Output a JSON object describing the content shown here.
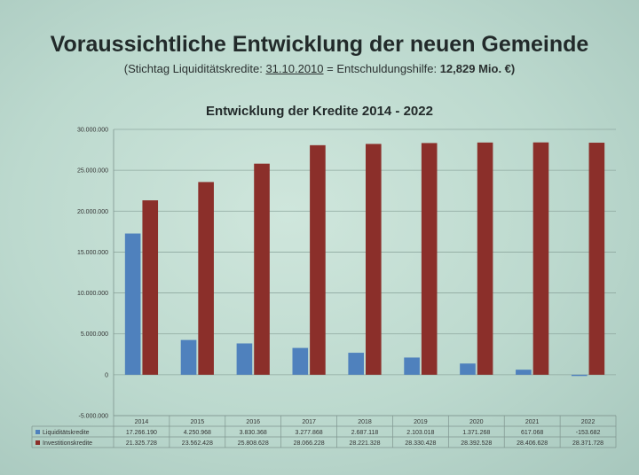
{
  "header": {
    "title": "Voraussichtliche Entwicklung der neuen Gemeinde",
    "subtitle_prefix": "(Stichtag Liquiditätskredite: ",
    "subtitle_date": "31.10.2010",
    "subtitle_middle": " = Entschuldungshilfe: ",
    "subtitle_amount": "12,829 Mio. €)"
  },
  "chart_data": {
    "type": "bar",
    "title": "Entwicklung  der Kredite 2014 - 2022",
    "categories": [
      "2014",
      "2015",
      "2016",
      "2017",
      "2018",
      "2019",
      "2020",
      "2021",
      "2022"
    ],
    "series": [
      {
        "name": "Liquiditätskredite",
        "color": "#4f81bd",
        "values": [
          17266190,
          4250968,
          3830368,
          3277868,
          2687118,
          2103018,
          1371268,
          617068,
          -153682
        ],
        "labels": [
          "17.266.190",
          "4.250.968",
          "3.830.368",
          "3.277.868",
          "2.687.118",
          "2.103.018",
          "1.371.268",
          "617.068",
          "-153.682"
        ]
      },
      {
        "name": "Investitionskredite",
        "color": "#8b2f2a",
        "values": [
          21325728,
          23562428,
          25808628,
          28066228,
          28221328,
          28330428,
          28392528,
          28406628,
          28371728
        ],
        "labels": [
          "21.325.728",
          "23.562.428",
          "25.808.628",
          "28.066.228",
          "28.221.328",
          "28.330.428",
          "28.392.528",
          "28.406.628",
          "28.371.728"
        ]
      }
    ],
    "ylim": [
      -5000000,
      30000000
    ],
    "yticks": [
      30000000,
      25000000,
      20000000,
      15000000,
      10000000,
      5000000,
      0,
      -5000000
    ],
    "ytick_labels": [
      "30.000.000",
      "25.000.000",
      "20.000.000",
      "15.000.000",
      "10.000.000",
      "5.000.000",
      "0",
      "-5.000.000"
    ],
    "grid": true,
    "legend": "data-table"
  }
}
